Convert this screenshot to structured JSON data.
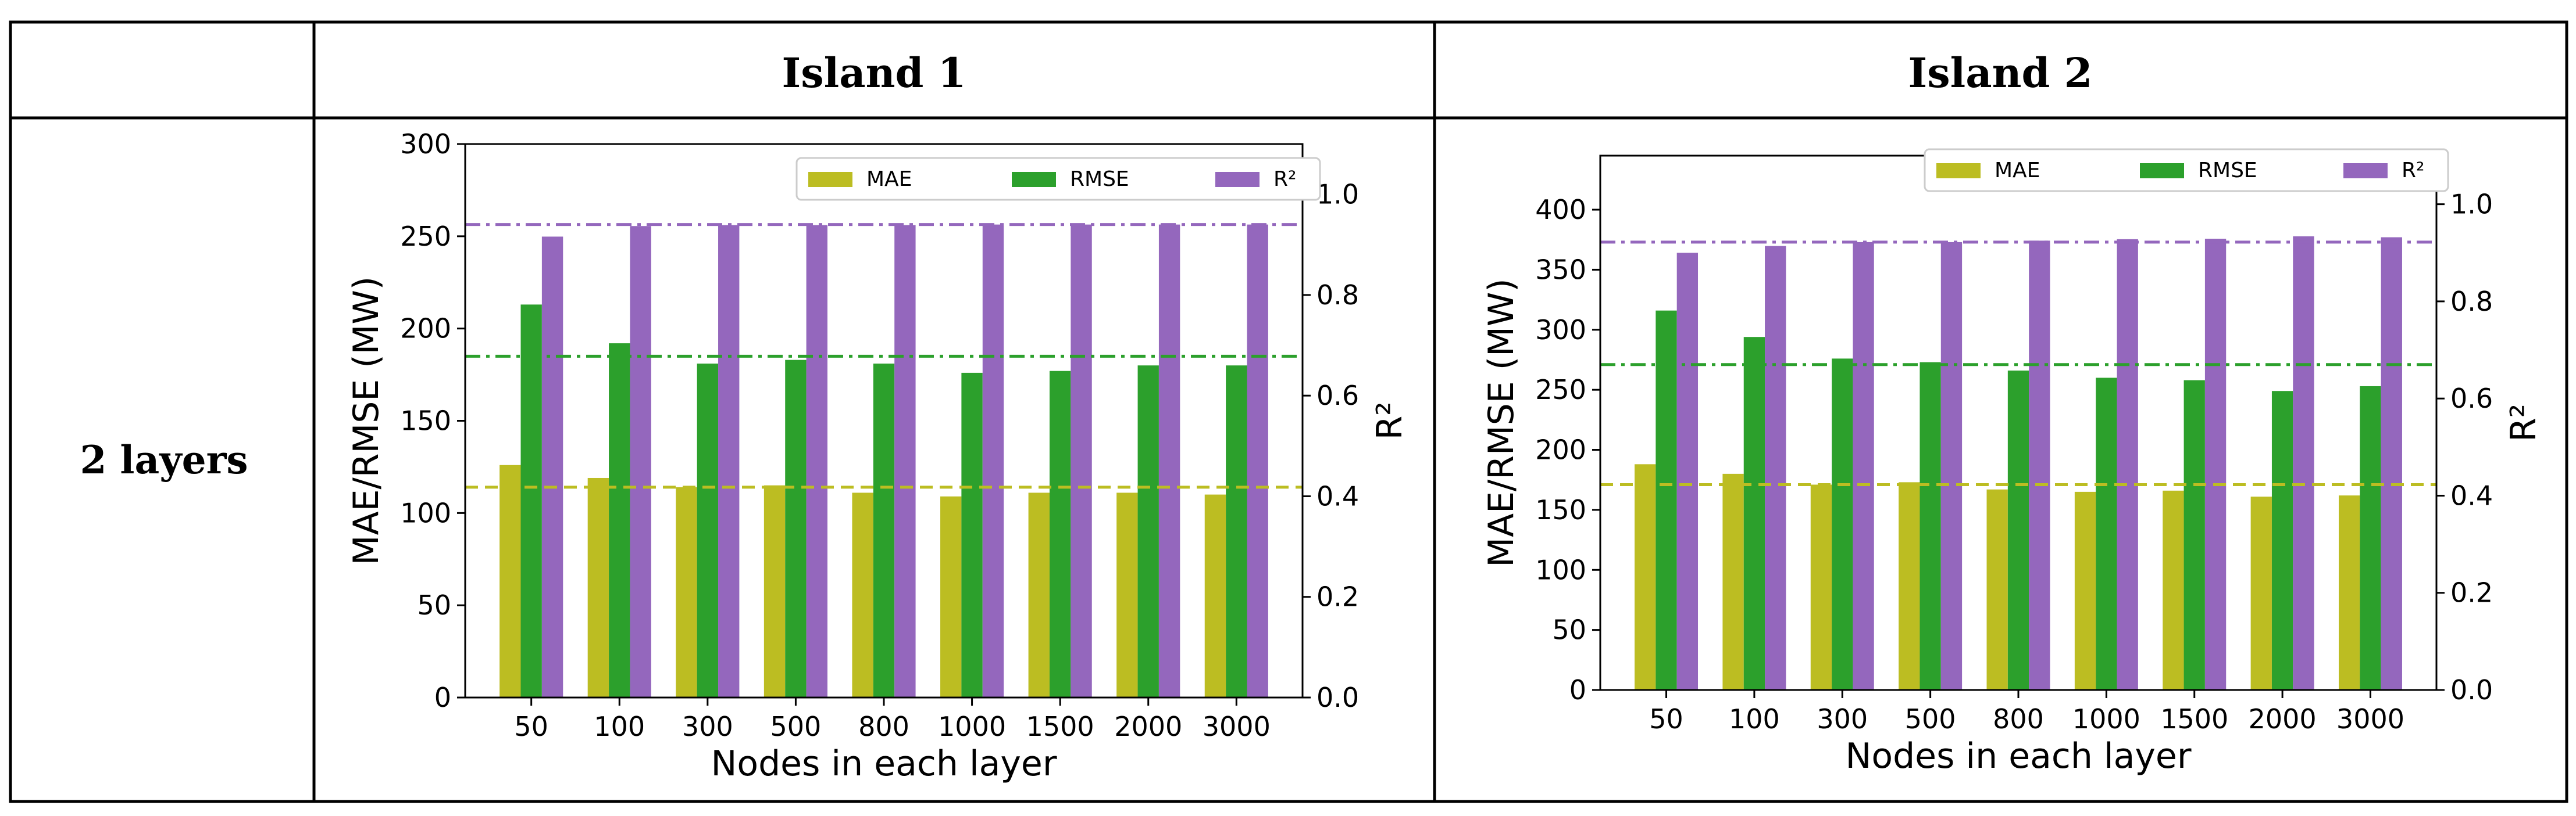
{
  "table": {
    "header": [
      "",
      "Island 1",
      "Island 2"
    ],
    "row_label": "2 layers"
  },
  "colors": {
    "mae": "#bcbd22",
    "rmse": "#2ca02c",
    "r2": "#9467bd"
  },
  "chart_data": [
    {
      "type": "bar",
      "title": "Island 1",
      "categories": [
        "50",
        "100",
        "300",
        "500",
        "800",
        "1000",
        "1500",
        "2000",
        "3000"
      ],
      "series": [
        {
          "name": "MAE",
          "axis": "left",
          "values": [
            126,
            119,
            114,
            115,
            111,
            109,
            111,
            111,
            110
          ]
        },
        {
          "name": "RMSE",
          "axis": "left",
          "values": [
            213,
            192,
            181,
            183,
            181,
            176,
            177,
            180,
            180
          ]
        },
        {
          "name": "R²",
          "axis": "right",
          "values": [
            0.916,
            0.937,
            0.939,
            0.939,
            0.939,
            0.94,
            0.94,
            0.94,
            0.94
          ]
        }
      ],
      "reference_lines": [
        {
          "series": "MAE",
          "axis": "left",
          "value": 114,
          "style": "dashed"
        },
        {
          "series": "RMSE",
          "axis": "left",
          "value": 185,
          "style": "dashdot"
        },
        {
          "series": "R²",
          "axis": "right",
          "value": 0.94,
          "style": "dashdot"
        }
      ],
      "xlabel": "Nodes in each layer",
      "ylabel": "MAE/RMSE (MW)",
      "y2label": "R²",
      "ylim": [
        0,
        300
      ],
      "y2lim": [
        0,
        1.1
      ],
      "yticks": [
        0,
        50,
        100,
        150,
        200,
        250,
        300
      ],
      "y2ticks": [
        0.0,
        0.2,
        0.4,
        0.6,
        0.8,
        1.0
      ],
      "legend": [
        "MAE",
        "RMSE",
        "R²"
      ],
      "legend_position": "top"
    },
    {
      "type": "bar",
      "title": "Island 2",
      "categories": [
        "50",
        "100",
        "300",
        "500",
        "800",
        "1000",
        "1500",
        "2000",
        "3000"
      ],
      "series": [
        {
          "name": "MAE",
          "axis": "left",
          "values": [
            188,
            180,
            171,
            173,
            167,
            165,
            166,
            161,
            162
          ]
        },
        {
          "name": "RMSE",
          "axis": "left",
          "values": [
            316,
            294,
            276,
            273,
            266,
            260,
            258,
            249,
            253
          ]
        },
        {
          "name": "R²",
          "axis": "right",
          "values": [
            0.9,
            0.914,
            0.922,
            0.922,
            0.925,
            0.928,
            0.929,
            0.934,
            0.932
          ]
        }
      ],
      "reference_lines": [
        {
          "series": "MAE",
          "axis": "left",
          "value": 171,
          "style": "dashed"
        },
        {
          "series": "RMSE",
          "axis": "left",
          "value": 271,
          "style": "dashdot"
        },
        {
          "series": "R²",
          "axis": "right",
          "value": 0.922,
          "style": "dashdot"
        }
      ],
      "xlabel": "Nodes in each layer",
      "ylabel": "MAE/RMSE (MW)",
      "y2label": "R²",
      "ylim": [
        0,
        445
      ],
      "y2lim": [
        0,
        1.1
      ],
      "yticks": [
        0,
        50,
        100,
        150,
        200,
        250,
        300,
        350,
        400
      ],
      "y2ticks": [
        0.0,
        0.2,
        0.4,
        0.6,
        0.8,
        1.0
      ],
      "legend": [
        "MAE",
        "RMSE",
        "R²"
      ],
      "legend_position": "top"
    }
  ]
}
